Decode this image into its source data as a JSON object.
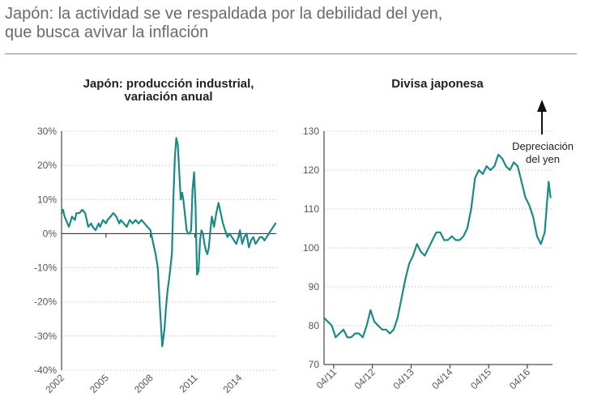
{
  "header": {
    "title_line1": "Japón: la actividad se ve respaldada por la debilidad del yen,",
    "title_line2": "que busca avivar la inflación"
  },
  "colors": {
    "series": "#1a8a86",
    "grid": "#c4c4c4",
    "axis": "#222222",
    "rule": "#8a8a8a"
  },
  "chart_data": [
    {
      "type": "line",
      "title_lines": [
        "Japón: producción industrial,",
        "variación anual"
      ],
      "ylim": [
        -40,
        30
      ],
      "yticks": [
        -40,
        -30,
        -20,
        -10,
        0,
        10,
        20,
        30
      ],
      "ytick_labels": [
        "-40%",
        "-30%",
        "-20%",
        "-10%",
        "0%",
        "10%",
        "20%",
        "30%"
      ],
      "xlim": [
        2002.0,
        2016.5
      ],
      "xticks": [
        2002,
        2005,
        2008,
        2011,
        2014
      ],
      "xtick_labels": [
        "2002",
        "2005",
        "2008",
        "2011",
        "2014"
      ],
      "series": [
        {
          "x": [
            2002.0,
            2002.1,
            2002.2,
            2002.3,
            2002.5,
            2002.7,
            2002.9,
            2003.0,
            2003.2,
            2003.4,
            2003.6,
            2003.8,
            2004.0,
            2004.1,
            2004.3,
            2004.5,
            2004.6,
            2004.8,
            2005.0,
            2005.1,
            2005.3,
            2005.5,
            2005.7,
            2005.9,
            2006.0,
            2006.2,
            2006.4,
            2006.6,
            2006.8,
            2007.0,
            2007.2,
            2007.4,
            2007.6,
            2007.8,
            2008.0,
            2008.2,
            2008.35,
            2008.5,
            2008.65,
            2008.8,
            2008.95,
            2009.05,
            2009.15,
            2009.3,
            2009.45,
            2009.55,
            2009.65,
            2009.75,
            2009.85,
            2009.95,
            2010.05,
            2010.15,
            2010.25,
            2010.35,
            2010.45,
            2010.55,
            2010.65,
            2010.75,
            2010.85,
            2010.95,
            2011.05,
            2011.15,
            2011.25,
            2011.35,
            2011.45,
            2011.55,
            2011.65,
            2011.75,
            2011.85,
            2011.95,
            2012.05,
            2012.15,
            2012.3,
            2012.45,
            2012.6,
            2012.75,
            2012.9,
            2013.05,
            2013.2,
            2013.35,
            2013.5,
            2013.65,
            2013.8,
            2013.95,
            2014.05,
            2014.2,
            2014.35,
            2014.5,
            2014.65,
            2014.8,
            2014.95,
            2015.1,
            2015.25,
            2015.4,
            2015.55,
            2015.7,
            2015.85,
            2016.0,
            2016.15,
            2016.3,
            2016.45
          ],
          "y": [
            6,
            7,
            5,
            4,
            2,
            5,
            4,
            6,
            6,
            7,
            6,
            2,
            3,
            2,
            1,
            3,
            2,
            4,
            3,
            4,
            5,
            6,
            5,
            3,
            4,
            3,
            2,
            4,
            3,
            4,
            3,
            4,
            3,
            2,
            1,
            -3,
            -6,
            -10,
            -22,
            -33,
            -28,
            -22,
            -17,
            -12,
            -6,
            10,
            22,
            28,
            26,
            18,
            10,
            12,
            9,
            5,
            1,
            0,
            0,
            1,
            13,
            18,
            8,
            -12,
            -11,
            -2,
            1,
            0,
            -3,
            -5,
            -6,
            -4,
            1,
            5,
            2,
            6,
            9,
            6,
            3,
            1,
            -1,
            0,
            -1,
            -2,
            -3,
            -1,
            1,
            -3,
            -1,
            0,
            -4,
            -2,
            -1,
            -3,
            -2,
            -1,
            -1,
            -2,
            -1,
            0,
            1,
            2,
            3
          ]
        }
      ]
    },
    {
      "type": "line",
      "title_lines": [
        "Divisa japonesa"
      ],
      "ylim": [
        70,
        130
      ],
      "yticks": [
        70,
        80,
        90,
        100,
        110,
        120,
        130
      ],
      "ytick_labels": [
        "70",
        "80",
        "90",
        "100",
        "110",
        "120",
        "130"
      ],
      "xlim": [
        2011.0,
        2016.9
      ],
      "xticks": [
        2011.25,
        2012.25,
        2013.25,
        2014.25,
        2015.25,
        2016.25
      ],
      "xtick_labels": [
        "04/11",
        "04/12",
        "04/13",
        "04/14",
        "04/15",
        "04/16"
      ],
      "annotation": {
        "lines": [
          "Depreciación",
          "del yen"
        ],
        "arrow": "up"
      },
      "series": [
        {
          "x": [
            2011.0,
            2011.1,
            2011.2,
            2011.3,
            2011.4,
            2011.5,
            2011.6,
            2011.7,
            2011.8,
            2011.9,
            2012.0,
            2012.1,
            2012.2,
            2012.3,
            2012.4,
            2012.5,
            2012.6,
            2012.7,
            2012.8,
            2012.9,
            2013.0,
            2013.1,
            2013.2,
            2013.3,
            2013.4,
            2013.5,
            2013.6,
            2013.7,
            2013.8,
            2013.9,
            2014.0,
            2014.1,
            2014.2,
            2014.3,
            2014.4,
            2014.5,
            2014.6,
            2014.7,
            2014.8,
            2014.9,
            2015.0,
            2015.1,
            2015.2,
            2015.3,
            2015.4,
            2015.5,
            2015.6,
            2015.7,
            2015.8,
            2015.9,
            2016.0,
            2016.1,
            2016.2,
            2016.3,
            2016.4,
            2016.5,
            2016.6,
            2016.7,
            2016.8,
            2016.85
          ],
          "y": [
            82,
            81,
            80,
            77,
            78,
            79,
            77,
            77,
            78,
            78,
            77,
            80,
            84,
            81,
            80,
            79,
            79,
            78,
            79,
            82,
            87,
            92,
            96,
            98,
            101,
            99,
            98,
            100,
            102,
            104,
            104,
            102,
            102,
            103,
            102,
            102,
            103,
            105,
            110,
            118,
            120,
            119,
            121,
            120,
            121,
            124,
            123,
            121,
            120,
            122,
            121,
            117,
            113,
            111,
            108,
            103,
            101,
            104,
            117,
            113
          ]
        }
      ]
    }
  ]
}
